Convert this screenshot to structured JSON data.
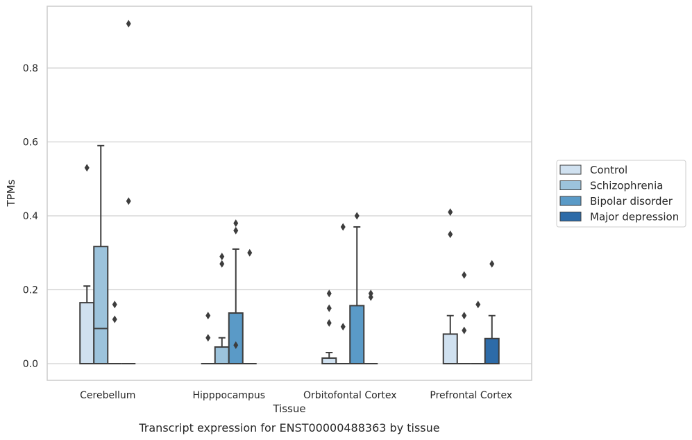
{
  "caption": "Transcript expression for ENST00000488363 by tissue",
  "chart_data": {
    "type": "box",
    "xlabel": "Tissue",
    "ylabel": "TPMs",
    "ylim": [
      -0.045,
      0.97
    ],
    "yticks": [
      0.0,
      0.2,
      0.4,
      0.6,
      0.8
    ],
    "ytick_labels": [
      "0.0",
      "0.2",
      "0.4",
      "0.6",
      "0.8"
    ],
    "grid": true,
    "legend_position": "right",
    "categories": [
      "Cerebellum",
      "Hipppocampus",
      "Orbitofontal Cortex",
      "Prefrontal Cortex"
    ],
    "series": [
      {
        "name": "Control",
        "color": "#d0e1f0",
        "boxes": [
          {
            "q1": 0.0,
            "median": 0.0,
            "q3": 0.165,
            "whisker_low": 0.0,
            "whisker_high": 0.21,
            "outliers": [
              0.53
            ]
          },
          {
            "q1": 0.0,
            "median": 0.0,
            "q3": 0.0,
            "whisker_low": 0.0,
            "whisker_high": 0.0,
            "outliers": [
              0.13,
              0.07
            ]
          },
          {
            "q1": 0.0,
            "median": 0.0,
            "q3": 0.015,
            "whisker_low": 0.0,
            "whisker_high": 0.03,
            "outliers": [
              0.19,
              0.15,
              0.11
            ]
          },
          {
            "q1": 0.0,
            "median": 0.0,
            "q3": 0.08,
            "whisker_low": 0.0,
            "whisker_high": 0.13,
            "outliers": [
              0.41,
              0.35
            ]
          }
        ]
      },
      {
        "name": "Schizophrenia",
        "color": "#9cc3dc",
        "boxes": [
          {
            "q1": 0.0,
            "median": 0.095,
            "q3": 0.317,
            "whisker_low": 0.0,
            "whisker_high": 0.59,
            "outliers": []
          },
          {
            "q1": 0.0,
            "median": 0.0,
            "q3": 0.045,
            "whisker_low": 0.0,
            "whisker_high": 0.07,
            "outliers": [
              0.29,
              0.27
            ]
          },
          {
            "q1": 0.0,
            "median": 0.0,
            "q3": 0.0,
            "whisker_low": 0.0,
            "whisker_high": 0.0,
            "outliers": [
              0.37,
              0.1
            ]
          },
          {
            "q1": 0.0,
            "median": 0.0,
            "q3": 0.0,
            "whisker_low": 0.0,
            "whisker_high": 0.0,
            "outliers": [
              0.24,
              0.13,
              0.09
            ]
          }
        ]
      },
      {
        "name": "Bipolar disorder",
        "color": "#5a9ac7",
        "boxes": [
          {
            "q1": 0.0,
            "median": 0.0,
            "q3": 0.0,
            "whisker_low": 0.0,
            "whisker_high": 0.0,
            "outliers": [
              0.16,
              0.12
            ]
          },
          {
            "q1": 0.0,
            "median": 0.0,
            "q3": 0.137,
            "whisker_low": 0.0,
            "whisker_high": 0.31,
            "outliers": [
              0.38,
              0.36,
              0.05
            ]
          },
          {
            "q1": 0.0,
            "median": 0.0,
            "q3": 0.157,
            "whisker_low": 0.0,
            "whisker_high": 0.37,
            "outliers": [
              0.4
            ]
          },
          {
            "q1": 0.0,
            "median": 0.0,
            "q3": 0.0,
            "whisker_low": 0.0,
            "whisker_high": 0.0,
            "outliers": [
              0.16
            ]
          }
        ]
      },
      {
        "name": "Major depression",
        "color": "#2d6ba8",
        "boxes": [
          {
            "q1": 0.0,
            "median": 0.0,
            "q3": 0.0,
            "whisker_low": 0.0,
            "whisker_high": 0.0,
            "outliers": [
              0.92,
              0.44
            ]
          },
          {
            "q1": 0.0,
            "median": 0.0,
            "q3": 0.0,
            "whisker_low": 0.0,
            "whisker_high": 0.0,
            "outliers": [
              0.3
            ]
          },
          {
            "q1": 0.0,
            "median": 0.0,
            "q3": 0.0,
            "whisker_low": 0.0,
            "whisker_high": 0.0,
            "outliers": [
              0.19,
              0.18
            ]
          },
          {
            "q1": 0.0,
            "median": 0.0,
            "q3": 0.068,
            "whisker_low": 0.0,
            "whisker_high": 0.13,
            "outliers": [
              0.27
            ]
          }
        ]
      }
    ]
  }
}
